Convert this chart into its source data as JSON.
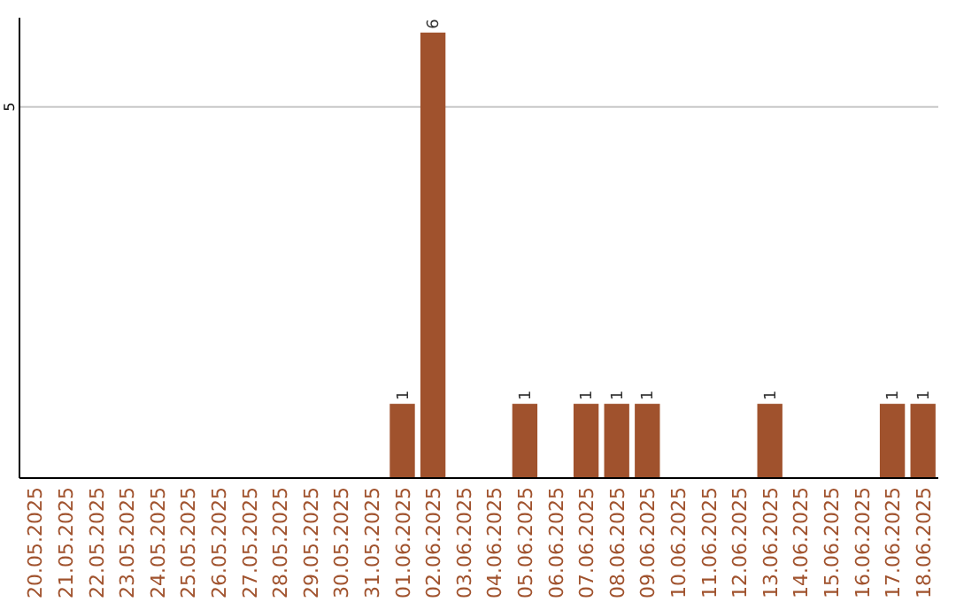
{
  "chart_data": {
    "type": "bar",
    "categories": [
      "20.05.2025",
      "21.05.2025",
      "22.05.2025",
      "23.05.2025",
      "24.05.2025",
      "25.05.2025",
      "26.05.2025",
      "27.05.2025",
      "28.05.2025",
      "29.05.2025",
      "30.05.2025",
      "31.05.2025",
      "01.06.2025",
      "02.06.2025",
      "03.06.2025",
      "04.06.2025",
      "05.06.2025",
      "06.06.2025",
      "07.06.2025",
      "08.06.2025",
      "09.06.2025",
      "10.06.2025",
      "11.06.2025",
      "12.06.2025",
      "13.06.2025",
      "14.06.2025",
      "15.06.2025",
      "16.06.2025",
      "17.06.2025",
      "18.06.2025"
    ],
    "values": [
      null,
      null,
      null,
      null,
      null,
      null,
      null,
      null,
      null,
      null,
      null,
      null,
      1,
      6,
      null,
      null,
      1,
      null,
      1,
      1,
      1,
      null,
      null,
      null,
      1,
      null,
      null,
      null,
      1,
      1
    ],
    "value_labels": [
      null,
      null,
      null,
      null,
      null,
      null,
      null,
      null,
      null,
      null,
      null,
      null,
      "1",
      "6",
      null,
      null,
      "1",
      null,
      "1",
      "1",
      "1",
      null,
      null,
      null,
      "1",
      null,
      null,
      null,
      "1",
      "1"
    ],
    "color": "#a0522d",
    "ylim": [
      0,
      6.2
    ],
    "yticks": [
      5
    ],
    "grid": "y"
  }
}
